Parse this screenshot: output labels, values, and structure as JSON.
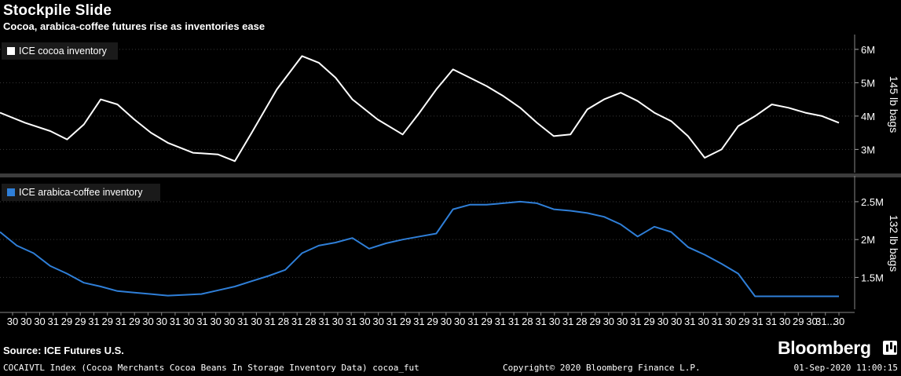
{
  "header": {
    "title": "Stockpile Slide",
    "subtitle": "Cocoa, arabica-coffee futures rise as inventories ease"
  },
  "footer": {
    "source": "Source: ICE Futures U.S.",
    "brand": "Bloomberg",
    "index_note": "COCAIVTL Index (Cocoa Merchants Cocoa Beans In Storage Inventory Data) cocoa_fut",
    "copyright": "Copyright© 2020 Bloomberg Finance L.P.",
    "timestamp": "01-Sep-2020 11:00:15"
  },
  "colors": {
    "cocoa": "#ffffff",
    "coffee": "#2f7fd8",
    "background": "#000000",
    "grid": "#3a3a3a"
  },
  "chart_data": [
    {
      "type": "line",
      "series": [
        {
          "name": "ICE cocoa inventory",
          "x": [
            0,
            3,
            6,
            8,
            10,
            12,
            14,
            16,
            18,
            20,
            23,
            26,
            28,
            30,
            33,
            36,
            38,
            40,
            42,
            45,
            48,
            50,
            52,
            54,
            56,
            58,
            60,
            62,
            64,
            66,
            68,
            70,
            72,
            74,
            76,
            78,
            80,
            82,
            84,
            86,
            88,
            90,
            92,
            94,
            96,
            98,
            100
          ],
          "values": [
            4.1,
            3.8,
            3.55,
            3.3,
            3.75,
            4.5,
            4.35,
            3.9,
            3.5,
            3.2,
            2.9,
            2.85,
            2.65,
            3.5,
            4.8,
            5.8,
            5.6,
            5.15,
            4.5,
            3.9,
            3.45,
            4.1,
            4.8,
            5.4,
            5.15,
            4.9,
            4.6,
            4.25,
            3.8,
            3.4,
            3.45,
            4.2,
            4.5,
            4.7,
            4.45,
            4.1,
            3.85,
            3.4,
            2.75,
            3.0,
            3.7,
            4.0,
            4.35,
            4.25,
            4.1,
            4.0,
            3.8
          ]
        }
      ],
      "ylabel": "145 lb bags",
      "y_ticks": [
        "3M",
        "4M",
        "5M",
        "6M"
      ],
      "y_tick_values": [
        3,
        4,
        5,
        6
      ],
      "ylim": [
        2.35,
        6.35
      ],
      "xlim": [
        0,
        100
      ],
      "legend_position": "top-left"
    },
    {
      "type": "line",
      "series": [
        {
          "name": "ICE arabica-coffee inventory",
          "x": [
            0,
            2,
            4,
            6,
            8,
            10,
            12,
            14,
            16,
            18,
            20,
            22,
            24,
            26,
            28,
            30,
            32,
            34,
            36,
            38,
            40,
            42,
            44,
            46,
            48,
            50,
            52,
            54,
            56,
            58,
            60,
            62,
            64,
            66,
            68,
            70,
            72,
            74,
            76,
            78,
            80,
            82,
            84,
            86,
            88,
            90,
            92,
            94,
            96,
            98,
            100
          ],
          "values": [
            2.1,
            1.92,
            1.82,
            1.65,
            1.55,
            1.43,
            1.38,
            1.32,
            1.3,
            1.28,
            1.26,
            1.27,
            1.28,
            1.33,
            1.38,
            1.45,
            1.52,
            1.6,
            1.82,
            1.92,
            1.96,
            2.02,
            1.88,
            1.95,
            2.0,
            2.04,
            2.08,
            2.4,
            2.46,
            2.46,
            2.48,
            2.5,
            2.48,
            2.4,
            2.38,
            2.35,
            2.3,
            2.2,
            2.04,
            2.17,
            2.1,
            1.9,
            1.8,
            1.68,
            1.55,
            1.25,
            1.25,
            1.25,
            1.25,
            1.25,
            1.25
          ]
        }
      ],
      "ylabel": "132 lb bags",
      "y_ticks": [
        "1.5M",
        "2M",
        "2.5M"
      ],
      "y_tick_values": [
        1.5,
        2,
        2.5
      ],
      "ylim": [
        1.1,
        2.8
      ],
      "xlim": [
        0,
        100
      ],
      "legend_position": "top-left"
    }
  ],
  "x_axis": {
    "tick_labels": [
      "30",
      "30",
      "30",
      "31",
      "29",
      "29",
      "31",
      "29",
      "31",
      "29",
      "30",
      "30",
      "31",
      "30",
      "31",
      "30",
      "30",
      "31",
      "30",
      "31",
      "28",
      "31",
      "28",
      "31",
      "30",
      "31",
      "30",
      "30",
      "31",
      "29",
      "31",
      "29",
      "30",
      "30",
      "31",
      "29",
      "31",
      "31",
      "28",
      "31",
      "30",
      "31",
      "28",
      "29",
      "30",
      "30",
      "31",
      "29",
      "30",
      "30",
      "31",
      "30",
      "31",
      "30",
      "29",
      "31",
      "31",
      "30",
      "29",
      "30",
      "31...",
      "30"
    ]
  }
}
